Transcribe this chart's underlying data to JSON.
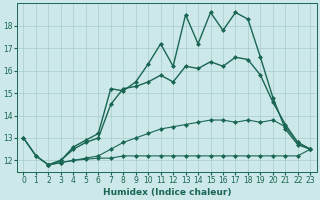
{
  "xlabel": "Humidex (Indice chaleur)",
  "background_color": "#cce8e8",
  "grid_color": "#aacccc",
  "line_color": "#1a6655",
  "xlim": [
    -0.5,
    23.5
  ],
  "ylim": [
    11.5,
    19.0
  ],
  "xticks": [
    0,
    1,
    2,
    3,
    4,
    5,
    6,
    7,
    8,
    9,
    10,
    11,
    12,
    13,
    14,
    15,
    16,
    17,
    18,
    19,
    20,
    21,
    22,
    23
  ],
  "yticks": [
    12,
    13,
    14,
    15,
    16,
    17,
    18
  ],
  "curves": [
    {
      "x": [
        0,
        1,
        2,
        3,
        4,
        5,
        6,
        7,
        8,
        9,
        10,
        11,
        12,
        13,
        14,
        15,
        16,
        17,
        18,
        19,
        20,
        21,
        22,
        23
      ],
      "y": [
        13.0,
        12.2,
        11.8,
        12.0,
        12.6,
        12.9,
        13.2,
        15.2,
        15.1,
        15.5,
        16.3,
        17.2,
        16.2,
        18.5,
        17.2,
        18.6,
        17.8,
        18.6,
        18.3,
        16.6,
        14.8,
        13.4,
        12.7,
        12.5
      ]
    },
    {
      "x": [
        0,
        1,
        2,
        3,
        4,
        5,
        6,
        7,
        8,
        9,
        10,
        11,
        12,
        13,
        14,
        15,
        16,
        17,
        18,
        19,
        20,
        21,
        22,
        23
      ],
      "y": [
        13.0,
        12.2,
        11.8,
        12.0,
        12.5,
        12.8,
        13.0,
        14.5,
        15.2,
        15.3,
        15.5,
        15.8,
        15.5,
        16.2,
        16.1,
        16.4,
        16.2,
        16.6,
        16.5,
        15.8,
        14.6,
        13.6,
        12.8,
        12.5
      ]
    },
    {
      "x": [
        2,
        3,
        4,
        5,
        6,
        7,
        8,
        9,
        10,
        11,
        12,
        13,
        14,
        15,
        16,
        17,
        18,
        19,
        20,
        21,
        22,
        23
      ],
      "y": [
        11.8,
        11.9,
        12.0,
        12.1,
        12.2,
        12.5,
        12.8,
        13.0,
        13.2,
        13.4,
        13.5,
        13.6,
        13.7,
        13.8,
        13.8,
        13.7,
        13.8,
        13.7,
        13.8,
        13.5,
        12.8,
        12.5
      ]
    },
    {
      "x": [
        2,
        3,
        4,
        5,
        6,
        7,
        8,
        9,
        10,
        11,
        12,
        13,
        14,
        15,
        16,
        17,
        18,
        19,
        20,
        21,
        22,
        23
      ],
      "y": [
        11.8,
        11.9,
        12.0,
        12.05,
        12.1,
        12.1,
        12.2,
        12.2,
        12.2,
        12.2,
        12.2,
        12.2,
        12.2,
        12.2,
        12.2,
        12.2,
        12.2,
        12.2,
        12.2,
        12.2,
        12.2,
        12.5
      ]
    }
  ]
}
